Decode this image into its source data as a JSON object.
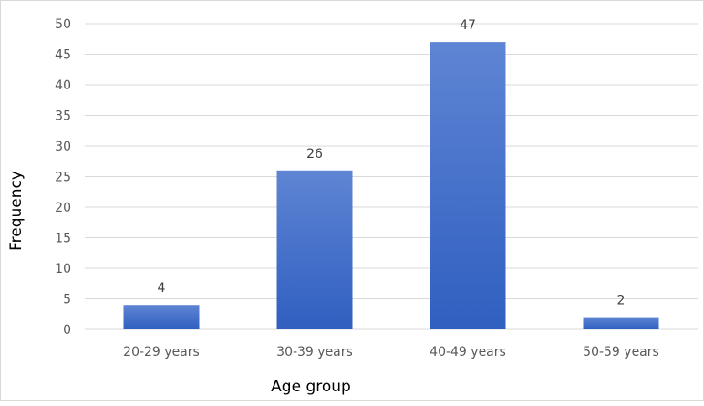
{
  "colors": {
    "bar_top": "#5f85d4",
    "bar_bottom": "#2f5fc0",
    "grid": "#d9d9d9",
    "tick_text": "#595959",
    "label_text": "#404040"
  },
  "chart_data": {
    "type": "bar",
    "title": "",
    "xlabel": "Age group",
    "ylabel": "Frequency",
    "categories": [
      "20-29 years",
      "30-39 years",
      "40-49 years",
      "50-59 years"
    ],
    "series": [
      {
        "values": [
          4,
          26,
          47,
          2
        ]
      }
    ],
    "data_labels": [
      "4",
      "26",
      "47",
      "2"
    ],
    "ylim": [
      0,
      50
    ],
    "yticks": [
      "0",
      "5",
      "10",
      "15",
      "20",
      "25",
      "30",
      "35",
      "40",
      "45",
      "50"
    ],
    "grid": true,
    "legend": "none"
  }
}
